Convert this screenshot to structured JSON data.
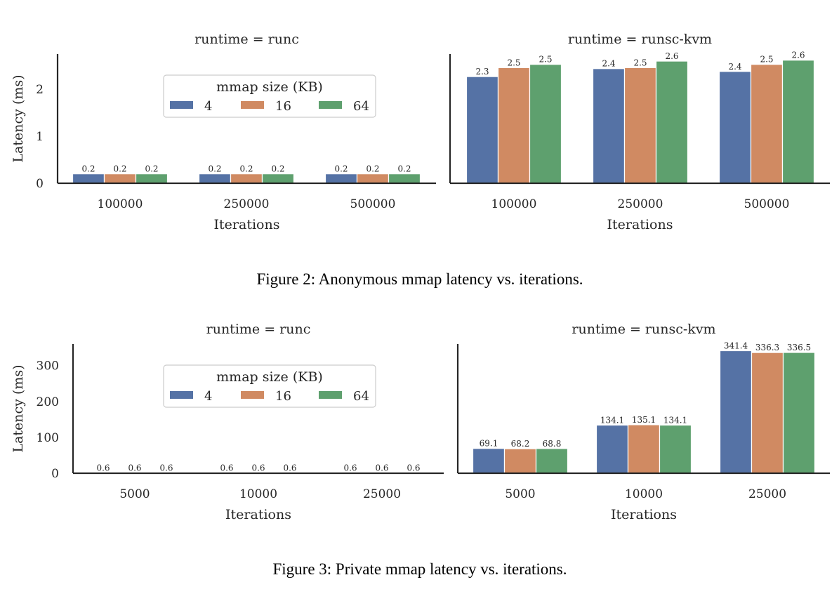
{
  "colors": {
    "4": "#5572a5",
    "16": "#d08a62",
    "64": "#5ea06e"
  },
  "chart_data": [
    {
      "type": "bar",
      "title": "runtime = runc",
      "xlabel": "Iterations",
      "ylabel": "Latency (ms)",
      "categories": [
        "100000",
        "250000",
        "500000"
      ],
      "yticks": [
        0,
        1,
        2
      ],
      "ylim": [
        0,
        2.75
      ],
      "legend": {
        "title": "mmap size (KB)",
        "placement": "upper-center",
        "labels": [
          "4",
          "16",
          "64"
        ]
      },
      "series": [
        {
          "name": "4",
          "values": [
            0.2,
            0.2,
            0.2
          ],
          "labels": [
            "0.2",
            "0.2",
            "0.2"
          ]
        },
        {
          "name": "16",
          "values": [
            0.2,
            0.2,
            0.2
          ],
          "labels": [
            "0.2",
            "0.2",
            "0.2"
          ]
        },
        {
          "name": "64",
          "values": [
            0.2,
            0.2,
            0.2
          ],
          "labels": [
            "0.2",
            "0.2",
            "0.2"
          ]
        }
      ]
    },
    {
      "type": "bar",
      "title": "runtime = runsc-kvm",
      "xlabel": "Iterations",
      "ylabel": "",
      "categories": [
        "100000",
        "250000",
        "500000"
      ],
      "yticks": [],
      "ylim": [
        0,
        2.75
      ],
      "series": [
        {
          "name": "4",
          "values": [
            2.27,
            2.44,
            2.38
          ],
          "labels": [
            "2.3",
            "2.4",
            "2.4"
          ]
        },
        {
          "name": "16",
          "values": [
            2.46,
            2.46,
            2.53
          ],
          "labels": [
            "2.5",
            "2.5",
            "2.5"
          ]
        },
        {
          "name": "64",
          "values": [
            2.53,
            2.6,
            2.62
          ],
          "labels": [
            "2.5",
            "2.6",
            "2.6"
          ]
        }
      ]
    },
    {
      "type": "bar",
      "title": "runtime = runc",
      "xlabel": "Iterations",
      "ylabel": "Latency (ms)",
      "categories": [
        "5000",
        "10000",
        "25000"
      ],
      "yticks": [
        0,
        100,
        200,
        300
      ],
      "ylim": [
        0,
        360
      ],
      "legend": {
        "title": "mmap size (KB)",
        "placement": "upper-center",
        "labels": [
          "4",
          "16",
          "64"
        ]
      },
      "series": [
        {
          "name": "4",
          "values": [
            0.6,
            0.6,
            0.6
          ],
          "labels": [
            "0.6",
            "0.6",
            "0.6"
          ]
        },
        {
          "name": "16",
          "values": [
            0.6,
            0.6,
            0.6
          ],
          "labels": [
            "0.6",
            "0.6",
            "0.6"
          ]
        },
        {
          "name": "64",
          "values": [
            0.6,
            0.6,
            0.6
          ],
          "labels": [
            "0.6",
            "0.6",
            "0.6"
          ]
        }
      ]
    },
    {
      "type": "bar",
      "title": "runtime = runsc-kvm",
      "xlabel": "Iterations",
      "ylabel": "",
      "categories": [
        "5000",
        "10000",
        "25000"
      ],
      "yticks": [],
      "ylim": [
        0,
        360
      ],
      "series": [
        {
          "name": "4",
          "values": [
            69.1,
            134.1,
            341.4
          ],
          "labels": [
            "69.1",
            "134.1",
            "341.4"
          ]
        },
        {
          "name": "16",
          "values": [
            68.2,
            135.1,
            336.3
          ],
          "labels": [
            "68.2",
            "135.1",
            "336.3"
          ]
        },
        {
          "name": "64",
          "values": [
            68.8,
            134.1,
            336.5
          ],
          "labels": [
            "68.8",
            "134.1",
            "336.5"
          ]
        }
      ]
    }
  ],
  "captions": {
    "figure2": "Figure 2:  Anonymous mmap latency vs. iterations.",
    "figure3": "Figure 3:  Private mmap latency vs. iterations."
  }
}
